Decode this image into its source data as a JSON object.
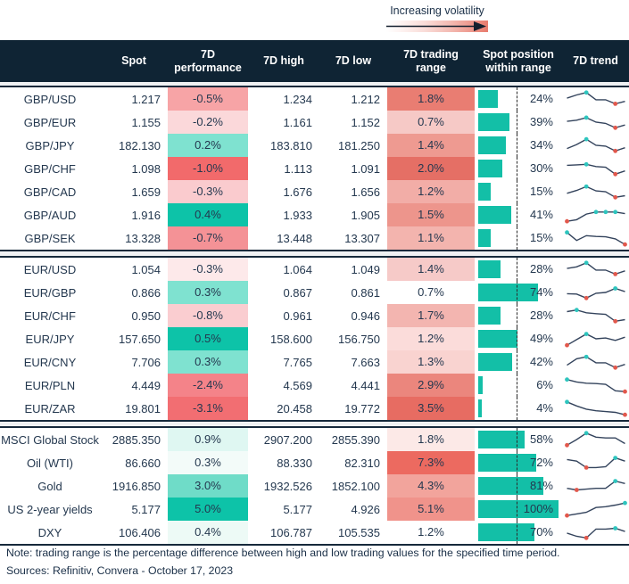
{
  "legend": {
    "label": "Increasing volatility"
  },
  "colors": {
    "header_bg": "#0F2434",
    "text": "#24384F",
    "bar_teal": "#13BFA7",
    "dot_high": "#2EC5BE",
    "dot_low": "#E2584C",
    "sparkline": "#33435C",
    "positive_strong": "#0DC3A8",
    "negative_strong": "#F26A6B"
  },
  "chart_data": {
    "type": "table",
    "columns": [
      "",
      "Spot",
      "7D performance",
      "7D high",
      "7D low",
      "7D trading range",
      "Spot position within range",
      "7D trend"
    ],
    "groups": [
      {
        "rows": [
          {
            "label": "GBP/USD",
            "spot": "1.217",
            "perf": "-0.5%",
            "perf_color": "#F7A4A6",
            "high": "1.234",
            "low": "1.212",
            "range": "1.8%",
            "range_color": "#E97D72",
            "position": 24,
            "position_label": "24%",
            "trend": [
              55,
              75,
              90,
              45,
              45,
              20,
              35
            ],
            "hi": [
              2
            ],
            "lo": [
              5
            ]
          },
          {
            "label": "GBP/EUR",
            "spot": "1.155",
            "perf": "-0.2%",
            "perf_color": "#FBD8DA",
            "high": "1.161",
            "low": "1.152",
            "range": "0.7%",
            "range_color": "#F6C9C6",
            "position": 39,
            "position_label": "39%",
            "trend": [
              55,
              62,
              78,
              50,
              42,
              15,
              32
            ],
            "hi": [
              2
            ],
            "lo": [
              5
            ]
          },
          {
            "label": "GBP/JPY",
            "spot": "182.130",
            "perf": "0.2%",
            "perf_color": "#7FE2D0",
            "high": "183.810",
            "low": "181.250",
            "range": "1.4%",
            "range_color": "#EE9A91",
            "position": 34,
            "position_label": "34%",
            "trend": [
              30,
              55,
              88,
              50,
              45,
              15,
              35
            ],
            "hi": [
              2
            ],
            "lo": [
              5
            ]
          },
          {
            "label": "GBP/CHF",
            "spot": "1.098",
            "perf": "-1.0%",
            "perf_color": "#F26A6B",
            "high": "1.113",
            "low": "1.091",
            "range": "2.0%",
            "range_color": "#E56F65",
            "position": 30,
            "position_label": "30%",
            "trend": [
              70,
              73,
              76,
              62,
              58,
              15,
              35
            ],
            "hi": [
              2
            ],
            "lo": [
              5
            ]
          },
          {
            "label": "GBP/CAD",
            "spot": "1.659",
            "perf": "-0.3%",
            "perf_color": "#FACBCE",
            "high": "1.676",
            "low": "1.656",
            "range": "1.2%",
            "range_color": "#F2ADA7",
            "position": 15,
            "position_label": "15%",
            "trend": [
              40,
              58,
              82,
              55,
              50,
              15,
              25
            ],
            "hi": [
              2
            ],
            "lo": [
              5
            ]
          },
          {
            "label": "GBP/AUD",
            "spot": "1.916",
            "perf": "0.4%",
            "perf_color": "#0DC3A8",
            "high": "1.933",
            "low": "1.905",
            "range": "1.5%",
            "range_color": "#ED958C",
            "position": 41,
            "position_label": "41%",
            "trend": [
              10,
              20,
              55,
              68,
              68,
              68,
              58
            ],
            "hi": [
              3,
              4,
              5
            ],
            "lo": [
              0
            ]
          },
          {
            "label": "GBP/SEK",
            "spot": "13.328",
            "perf": "-0.7%",
            "perf_color": "#F49296",
            "high": "13.448",
            "low": "13.307",
            "range": "1.1%",
            "range_color": "#F3B4AE",
            "position": 15,
            "position_label": "15%",
            "trend": [
              85,
              35,
              65,
              60,
              58,
              45,
              10
            ],
            "hi": [
              0
            ],
            "lo": [
              6
            ]
          }
        ]
      },
      {
        "rows": [
          {
            "label": "EUR/USD",
            "spot": "1.054",
            "perf": "-0.3%",
            "perf_color": "#FDE9EA",
            "high": "1.064",
            "low": "1.049",
            "range": "1.4%",
            "range_color": "#F6CAC8",
            "position": 28,
            "position_label": "28%",
            "trend": [
              55,
              65,
              90,
              45,
              45,
              20,
              40
            ],
            "hi": [
              2
            ],
            "lo": [
              5
            ]
          },
          {
            "label": "EUR/GBP",
            "spot": "0.866",
            "perf": "0.3%",
            "perf_color": "#7FE2D0",
            "high": "0.867",
            "low": "0.861",
            "range": "0.7%",
            "range_color": "#FFFFFF",
            "position": 74,
            "position_label": "74%",
            "trend": [
              42,
              40,
              15,
              45,
              50,
              75,
              55
            ],
            "hi": [
              5
            ],
            "lo": [
              2
            ]
          },
          {
            "label": "EUR/CHF",
            "spot": "0.950",
            "perf": "-0.8%",
            "perf_color": "#FACDD0",
            "high": "0.961",
            "low": "0.946",
            "range": "1.7%",
            "range_color": "#F3B5B0",
            "position": 28,
            "position_label": "28%",
            "trend": [
              75,
              85,
              68,
              62,
              58,
              15,
              25
            ],
            "hi": [
              1
            ],
            "lo": [
              5
            ]
          },
          {
            "label": "EUR/JPY",
            "spot": "157.650",
            "perf": "0.5%",
            "perf_color": "#0DC3A8",
            "high": "158.600",
            "low": "156.750",
            "range": "1.2%",
            "range_color": "#FBDCDA",
            "position": 49,
            "position_label": "49%",
            "trend": [
              10,
              45,
              80,
              50,
              55,
              40,
              60
            ],
            "hi": [
              2
            ],
            "lo": [
              0
            ]
          },
          {
            "label": "EUR/CNY",
            "spot": "7.706",
            "perf": "0.3%",
            "perf_color": "#7FE2D0",
            "high": "7.765",
            "low": "7.663",
            "range": "1.3%",
            "range_color": "#F9D3D0",
            "position": 42,
            "position_label": "42%",
            "trend": [
              30,
              70,
              82,
              45,
              45,
              15,
              35
            ],
            "hi": [
              2
            ],
            "lo": [
              5
            ]
          },
          {
            "label": "EUR/PLN",
            "spot": "4.449",
            "perf": "-2.4%",
            "perf_color": "#F48389",
            "high": "4.569",
            "low": "4.441",
            "range": "2.9%",
            "range_color": "#EB867D",
            "position": 6,
            "position_label": "6%",
            "trend": [
              85,
              70,
              62,
              60,
              55,
              15,
              10
            ],
            "hi": [
              0
            ],
            "lo": [
              6
            ]
          },
          {
            "label": "EUR/ZAR",
            "spot": "19.801",
            "perf": "-3.1%",
            "perf_color": "#F26E72",
            "high": "20.458",
            "low": "19.772",
            "range": "3.5%",
            "range_color": "#E76C62",
            "position": 4,
            "position_label": "4%",
            "trend": [
              90,
              65,
              45,
              35,
              30,
              25,
              10
            ],
            "hi": [
              0
            ],
            "lo": [
              6
            ]
          }
        ]
      },
      {
        "rows": [
          {
            "label": "MSCI Global Stock",
            "spot": "2885.350",
            "perf": "0.9%",
            "perf_color": "#DFF7F2",
            "high": "2907.200",
            "low": "2855.390",
            "range": "1.8%",
            "range_color": "#FCE9E7",
            "position": 58,
            "position_label": "58%",
            "trend": [
              15,
              50,
              90,
              65,
              60,
              60,
              25
            ],
            "hi": [
              2
            ],
            "lo": [
              0
            ]
          },
          {
            "label": "Oil (WTI)",
            "spot": "86.660",
            "perf": "0.3%",
            "perf_color": "#F3FBF9",
            "high": "88.330",
            "low": "82.310",
            "range": "7.3%",
            "range_color": "#EC6A60",
            "position": 72,
            "position_label": "72%",
            "trend": [
              70,
              60,
              20,
              20,
              25,
              80,
              60
            ],
            "hi": [
              5
            ],
            "lo": [
              2
            ]
          },
          {
            "label": "Gold",
            "spot": "1916.850",
            "perf": "3.0%",
            "perf_color": "#6FDCC8",
            "high": "1932.526",
            "low": "1852.100",
            "range": "4.3%",
            "range_color": "#F2A49C",
            "position": 81,
            "position_label": "81%",
            "trend": [
              35,
              25,
              30,
              35,
              35,
              80,
              65
            ],
            "hi": [
              5
            ],
            "lo": [
              1
            ]
          },
          {
            "label": "US 2-year yields",
            "spot": "5.177",
            "perf": "5.0%",
            "perf_color": "#0DC3A8",
            "high": "5.177",
            "low": "4.926",
            "range": "5.1%",
            "range_color": "#F0938B",
            "position": 100,
            "position_label": "100%",
            "trend": [
              10,
              20,
              30,
              60,
              65,
              75,
              88
            ],
            "hi": [
              6
            ],
            "lo": [
              0
            ]
          },
          {
            "label": "DXY",
            "spot": "106.406",
            "perf": "0.4%",
            "perf_color": "#EDFAF6",
            "high": "106.787",
            "low": "105.535",
            "range": "1.2%",
            "range_color": "#FFFFFF",
            "position": 70,
            "position_label": "70%",
            "trend": [
              45,
              25,
              15,
              70,
              70,
              75,
              55
            ],
            "hi": [
              5
            ],
            "lo": [
              2
            ]
          }
        ]
      }
    ]
  },
  "footer": {
    "note": "Note: trading range is the percentage difference between high and low trading values for the specified time period.",
    "sources": "Sources: Refinitiv, Convera - October 17, 2023"
  }
}
